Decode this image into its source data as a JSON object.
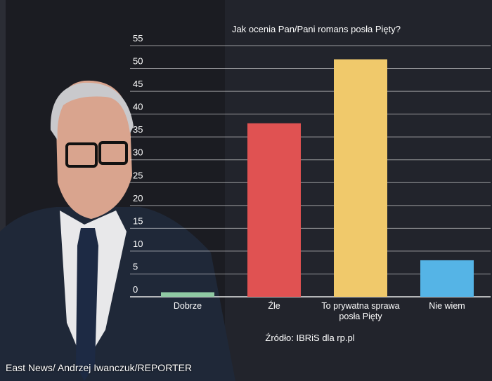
{
  "chart_data": {
    "type": "bar",
    "title": "Jak ocenia Pan/Pani romans posła Pięty?",
    "categories": [
      [
        "Dobrze"
      ],
      [
        "Źle"
      ],
      [
        "To prywatna sprawa",
        "posła Pięty"
      ],
      [
        "Nie wiem"
      ]
    ],
    "values": [
      1,
      38,
      52,
      8
    ],
    "colors": [
      "#8fc9a3",
      "#e05252",
      "#f0c96b",
      "#55b4e6"
    ],
    "yticks": [
      0,
      5,
      10,
      15,
      20,
      25,
      30,
      35,
      40,
      45,
      50,
      55
    ],
    "ylim": [
      0,
      55
    ],
    "grid": true
  },
  "source": "Źródło: IBRiS dla rp.pl",
  "photo_credit": "East News/ Andrzej Iwanczuk/REPORTER"
}
